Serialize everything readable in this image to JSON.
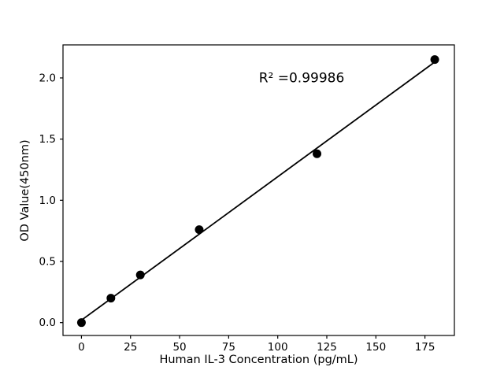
{
  "chart_data": {
    "type": "scatter",
    "title": "",
    "xlabel": "Human IL-3 Concentration (pg/mL)",
    "ylabel": "OD Value(450nm)",
    "annotation": {
      "text": "R² =0.99986",
      "x": 112,
      "y": 1.99
    },
    "points": {
      "x": [
        0,
        15,
        30,
        60,
        120,
        180
      ],
      "y": [
        0.0,
        0.2,
        0.39,
        0.76,
        1.38,
        2.15
      ]
    },
    "fit_line": {
      "x": [
        0,
        180
      ],
      "y": [
        0.02,
        2.13
      ]
    },
    "xticks": {
      "values": [
        0,
        25,
        50,
        75,
        100,
        125,
        150,
        175
      ],
      "labels": [
        "0",
        "25",
        "50",
        "75",
        "100",
        "125",
        "150",
        "175"
      ]
    },
    "yticks": {
      "values": [
        0,
        0.5,
        1.0,
        1.5,
        2.0
      ],
      "labels": [
        "0.0",
        "0.5",
        "1.0",
        "1.5",
        "2.0"
      ]
    },
    "xlim": [
      -9.4,
      190
    ],
    "ylim": [
      -0.105,
      2.27
    ],
    "grid": false,
    "legend_position": "none",
    "colors": {
      "background": "#ffffff",
      "marker": "#000000",
      "line": "#000000",
      "axis": "#000000",
      "text": "#000000"
    }
  }
}
